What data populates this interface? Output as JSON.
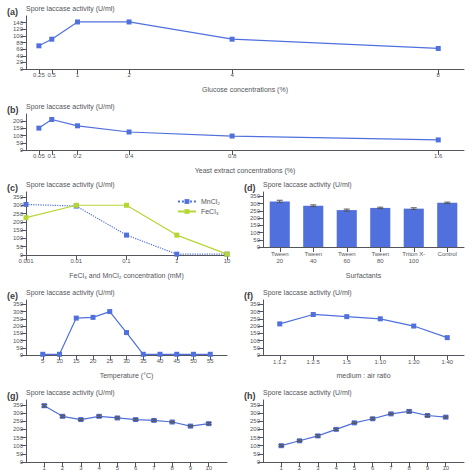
{
  "chart_data": [
    {
      "type": "line",
      "title": "(a)",
      "x": [
        0.25,
        0.5,
        1,
        2,
        4,
        8
      ],
      "values": [
        70,
        90,
        142,
        142,
        90,
        62
      ],
      "xlabel": "Glucose concentrations (%)",
      "ylabel": "Spore laccase activity (U/ml)",
      "xlim": [
        0,
        8.5
      ],
      "xticks": [
        0.25,
        0.5,
        1,
        2,
        4,
        8
      ],
      "ylim": [
        0,
        160
      ],
      "yticks": [
        0,
        20,
        40,
        60,
        80,
        100,
        120,
        140
      ],
      "marker": "square",
      "grid": false
    },
    {
      "type": "line",
      "title": "(b)",
      "x": [
        0.05,
        0.1,
        0.2,
        0.4,
        0.8,
        1.6
      ],
      "values": [
        152,
        212,
        168,
        125,
        97,
        70
      ],
      "xlabel": "Yeast extract concentrations (%)",
      "ylabel": "Spore laccase activity (U/ml)",
      "xlim": [
        0,
        1.7
      ],
      "xticks": [
        0.05,
        0.1,
        0.2,
        0.4,
        0.8,
        1.6
      ],
      "ylim": [
        0,
        250
      ],
      "yticks": [
        0,
        50,
        100,
        150,
        200
      ],
      "marker": "square",
      "grid": false
    },
    {
      "type": "line",
      "title": "(c)",
      "x": [
        0.001,
        0.01,
        0.1,
        1,
        10
      ],
      "series": [
        {
          "name": "MnCl₂",
          "values": [
            305,
            295,
            120,
            5,
            5
          ],
          "line_style": "dotted"
        },
        {
          "name": "FeCl₃",
          "values": [
            225,
            300,
            300,
            120,
            5
          ],
          "line_style": "solid"
        }
      ],
      "xlabel": "FeCl₃ and MnCl₂ concentration (mM)",
      "ylabel": "Spore laccase activity (U/ml)",
      "log": "x",
      "xlim": [
        0.001,
        10
      ],
      "xticks": [
        0.001,
        0.01,
        0.1,
        1,
        10
      ],
      "ylim": [
        0,
        380
      ],
      "yticks": [
        0,
        50,
        100,
        150,
        200,
        250,
        300,
        350
      ],
      "marker": "square",
      "legend": "upper right",
      "grid": false
    },
    {
      "type": "bar",
      "title": "(d)",
      "categories": [
        "Tween\n20",
        "Tween\n40",
        "Tween\n60",
        "Tween\n80",
        "Triton X-\n100",
        "Control"
      ],
      "values": [
        315,
        285,
        255,
        270,
        265,
        305
      ],
      "errors": [
        8,
        6,
        7,
        5,
        6,
        5
      ],
      "xlabel": "Surfactants",
      "ylabel": "Spore laccase activity (U/ml)",
      "ylim": [
        0,
        380
      ],
      "yticks": [
        0,
        50,
        100,
        150,
        200,
        250,
        300,
        350
      ],
      "grid": false
    },
    {
      "type": "line",
      "title": "(e)",
      "x": [
        5,
        10,
        15,
        20,
        25,
        30,
        35,
        40,
        45,
        50,
        55
      ],
      "values": [
        5,
        5,
        255,
        260,
        300,
        155,
        5,
        5,
        5,
        5,
        5
      ],
      "xlabel": "Temperature (°C)",
      "ylabel": "Spore laccase activity (U/ml)",
      "xlim": [
        0,
        60
      ],
      "xticks": [
        5,
        10,
        15,
        20,
        25,
        30,
        35,
        40,
        45,
        50,
        55
      ],
      "ylim": [
        0,
        380
      ],
      "yticks": [
        0,
        50,
        100,
        150,
        200,
        250,
        300,
        350
      ],
      "marker": "square",
      "grid": false
    },
    {
      "type": "line",
      "title": "(f)",
      "categories": [
        "1:1.2",
        "1:2.5",
        "1:5",
        "1:10",
        "1:20",
        "1:40"
      ],
      "values": [
        215,
        280,
        265,
        250,
        200,
        120
      ],
      "xlabel": "medium : air ratio",
      "ylabel": "Spore laccase activity (U/ml)",
      "ylim": [
        0,
        380
      ],
      "yticks": [
        0,
        50,
        100,
        150,
        200,
        250,
        300,
        350
      ],
      "marker": "square",
      "grid": false
    },
    {
      "type": "line",
      "title": "(g)",
      "x": [
        1,
        2,
        3,
        4,
        5,
        6,
        7,
        8,
        9,
        10
      ],
      "values": [
        345,
        280,
        260,
        280,
        270,
        260,
        255,
        245,
        220,
        235
      ],
      "errors": [
        8,
        6,
        5,
        7,
        6,
        5,
        6,
        5,
        5,
        6
      ],
      "ylabel": "Spore laccase activity (U/ml)",
      "xlim": [
        0,
        11
      ],
      "xticks": [
        1,
        2,
        3,
        4,
        5,
        6,
        7,
        8,
        9,
        10
      ],
      "ylim": [
        0,
        380
      ],
      "yticks": [
        0,
        50,
        100,
        150,
        200,
        250,
        300,
        350
      ],
      "marker": "square",
      "grid": false
    },
    {
      "type": "line",
      "title": "(h)",
      "x": [
        1,
        2,
        3,
        4,
        5,
        6,
        7,
        8,
        9,
        10
      ],
      "values": [
        100,
        130,
        160,
        200,
        240,
        265,
        295,
        310,
        285,
        275
      ],
      "errors": [
        6,
        5,
        7,
        6,
        5,
        6,
        5,
        8,
        7,
        6
      ],
      "ylabel": "Spore laccase activity (U/ml)",
      "xlim": [
        0,
        11
      ],
      "xticks": [
        1,
        2,
        3,
        4,
        5,
        6,
        7,
        8,
        9,
        10
      ],
      "ylim": [
        0,
        380
      ],
      "yticks": [
        0,
        50,
        100,
        150,
        200,
        250,
        300,
        350
      ],
      "marker": "square",
      "grid": false
    }
  ]
}
